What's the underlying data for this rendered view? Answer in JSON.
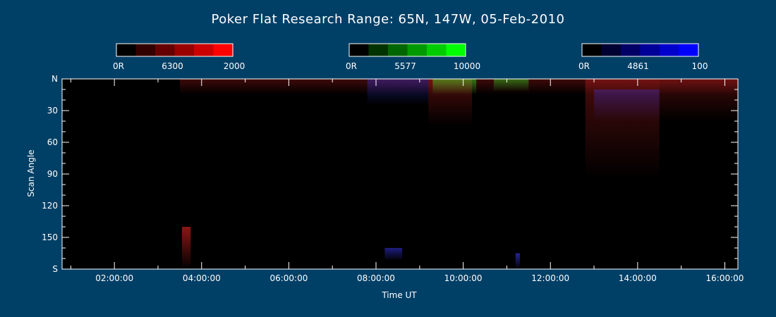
{
  "chart_data": {
    "type": "heatmap",
    "title": "Poker Flat Research Range: 65N, 147W, 05-Feb-2010",
    "xlabel": "Time UT",
    "ylabel": "Scan Angle",
    "x_ticks": [
      "02:00:00",
      "04:00:00",
      "06:00:00",
      "08:00:00",
      "10:00:00",
      "12:00:00",
      "14:00:00",
      "16:00:00"
    ],
    "x_tick_hours": [
      2,
      4,
      6,
      8,
      10,
      12,
      14,
      16
    ],
    "xlim_hours": [
      0.8,
      16.3
    ],
    "y_ticks": [
      "N",
      "30",
      "60",
      "90",
      "120",
      "150",
      "S"
    ],
    "y_tick_values": [
      0,
      30,
      60,
      90,
      120,
      150,
      180
    ],
    "ylim": [
      0,
      180
    ],
    "colorbars": [
      {
        "name": "6300",
        "min_label": "0R",
        "mid_label": "6300",
        "max_label": "2000",
        "max": 2000,
        "colors": [
          "#000000",
          "#330000",
          "#660000",
          "#990000",
          "#cc0000",
          "#ff0000"
        ]
      },
      {
        "name": "5577",
        "min_label": "0R",
        "mid_label": "5577",
        "max_label": "10000",
        "max": 10000,
        "colors": [
          "#000000",
          "#003300",
          "#006600",
          "#009900",
          "#00cc00",
          "#00ff00"
        ]
      },
      {
        "name": "4861",
        "min_label": "0R",
        "mid_label": "4861",
        "max_label": "100",
        "max": 100,
        "colors": [
          "#000000",
          "#000033",
          "#000066",
          "#000099",
          "#0000cc",
          "#0000ff"
        ]
      }
    ],
    "features": [
      {
        "channel": "6300",
        "t_start": 3.5,
        "t_end": 16.3,
        "angle_start": 0,
        "angle_end": 15,
        "intensity": 0.25
      },
      {
        "channel": "6300",
        "t_start": 9.2,
        "t_end": 10.2,
        "angle_start": 0,
        "angle_end": 45,
        "intensity": 0.3
      },
      {
        "channel": "6300",
        "t_start": 12.8,
        "t_end": 14.5,
        "angle_start": 0,
        "angle_end": 95,
        "intensity": 0.28
      },
      {
        "channel": "6300",
        "t_start": 14.5,
        "t_end": 16.3,
        "angle_start": 0,
        "angle_end": 40,
        "intensity": 0.25
      },
      {
        "channel": "6300",
        "t_start": 3.55,
        "t_end": 3.75,
        "angle_start": 140,
        "angle_end": 180,
        "intensity": 0.55
      },
      {
        "channel": "5577",
        "t_start": 9.3,
        "t_end": 10.3,
        "angle_start": 0,
        "angle_end": 15,
        "intensity": 0.45
      },
      {
        "channel": "5577",
        "t_start": 10.7,
        "t_end": 11.5,
        "angle_start": 0,
        "angle_end": 12,
        "intensity": 0.4
      },
      {
        "channel": "4861",
        "t_start": 7.8,
        "t_end": 9.2,
        "angle_start": 0,
        "angle_end": 25,
        "intensity": 0.35
      },
      {
        "channel": "4861",
        "t_start": 13.0,
        "t_end": 14.5,
        "angle_start": 10,
        "angle_end": 40,
        "intensity": 0.3
      },
      {
        "channel": "4861",
        "t_start": 8.2,
        "t_end": 8.6,
        "angle_start": 160,
        "angle_end": 172,
        "intensity": 0.5
      },
      {
        "channel": "4861",
        "t_start": 11.2,
        "t_end": 11.3,
        "angle_start": 165,
        "angle_end": 180,
        "intensity": 0.6
      }
    ]
  }
}
